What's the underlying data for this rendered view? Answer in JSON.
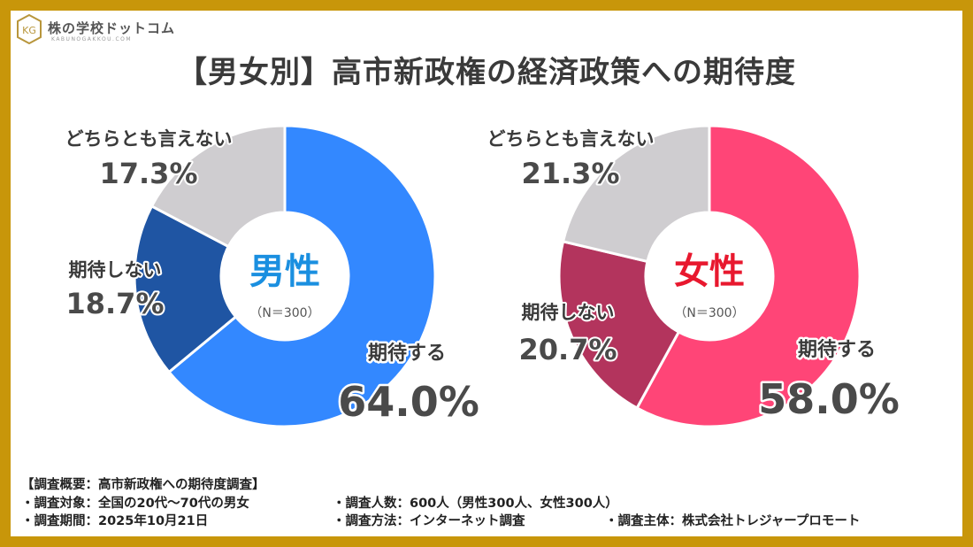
{
  "logo": {
    "name": "株の学校ドットコム",
    "sub": "KABUNOGAKKOU.COM",
    "mark": "KG"
  },
  "title": "【男女別】高市新政権の経済政策への期待度",
  "chart_data": [
    {
      "type": "pie",
      "center_label": "男性",
      "n_label": "（N＝300）",
      "center_color": "#1a8fe0",
      "slices": [
        {
          "name": "期待する",
          "value": 64.0,
          "label": "64.0%",
          "color": "#3388ff"
        },
        {
          "name": "期待しない",
          "value": 18.7,
          "label": "18.7%",
          "color": "#1f55a3"
        },
        {
          "name": "どちらとも言えない",
          "value": 17.3,
          "label": "17.3%",
          "color": "#cfcdd0"
        }
      ]
    },
    {
      "type": "pie",
      "center_label": "女性",
      "n_label": "（N＝300）",
      "center_color": "#e8182e",
      "slices": [
        {
          "name": "期待する",
          "value": 58.0,
          "label": "58.0%",
          "color": "#ff4577"
        },
        {
          "name": "期待しない",
          "value": 20.7,
          "label": "20.7%",
          "color": "#b3345d"
        },
        {
          "name": "どちらとも言えない",
          "value": 21.3,
          "label": "21.3%",
          "color": "#cfcdd0"
        }
      ]
    }
  ],
  "survey": {
    "heading": "【調査概要：高市新政権への期待度調査】",
    "target": "・調査対象：全国の20代～70代の男女",
    "count": "・調査人数：600人（男性300人、女性300人）",
    "period": "・調査期間：2025年10月21日",
    "method": "・調査方法：インターネット調査",
    "sponsor": "・調査主体：株式会社トレジャープロモート"
  }
}
